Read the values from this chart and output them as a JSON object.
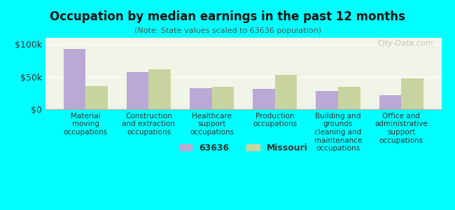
{
  "title": "Occupation by median earnings in the past 12 months",
  "subtitle": "(Note: State values scaled to 63636 population)",
  "categories": [
    "Material\nmoving\noccupations",
    "Construction\nand extraction\noccupations",
    "Healthcare\nsupport\noccupations",
    "Production\noccupations",
    "Building and\ngrounds\ncleaning and\nmaintenance\noccupations",
    "Office and\nadministrative\nsupport\noccupations"
  ],
  "values_63636": [
    93000,
    57000,
    32000,
    31000,
    28000,
    22000
  ],
  "values_missouri": [
    36000,
    61000,
    35000,
    53000,
    34000,
    47000
  ],
  "bar_color_63636": "#b9a9d4",
  "bar_color_missouri": "#c8d4a0",
  "background_color": "#00ffff",
  "plot_bg_top": "#f0f5e8",
  "plot_bg_bottom": "#e8f5e0",
  "ylim": [
    0,
    110000
  ],
  "yticks": [
    0,
    50000,
    100000
  ],
  "ytick_labels": [
    "$0",
    "$50k",
    "$100k"
  ],
  "legend_label_63636": "63636",
  "legend_label_missouri": "Missouri",
  "watermark": "City-Data.com"
}
